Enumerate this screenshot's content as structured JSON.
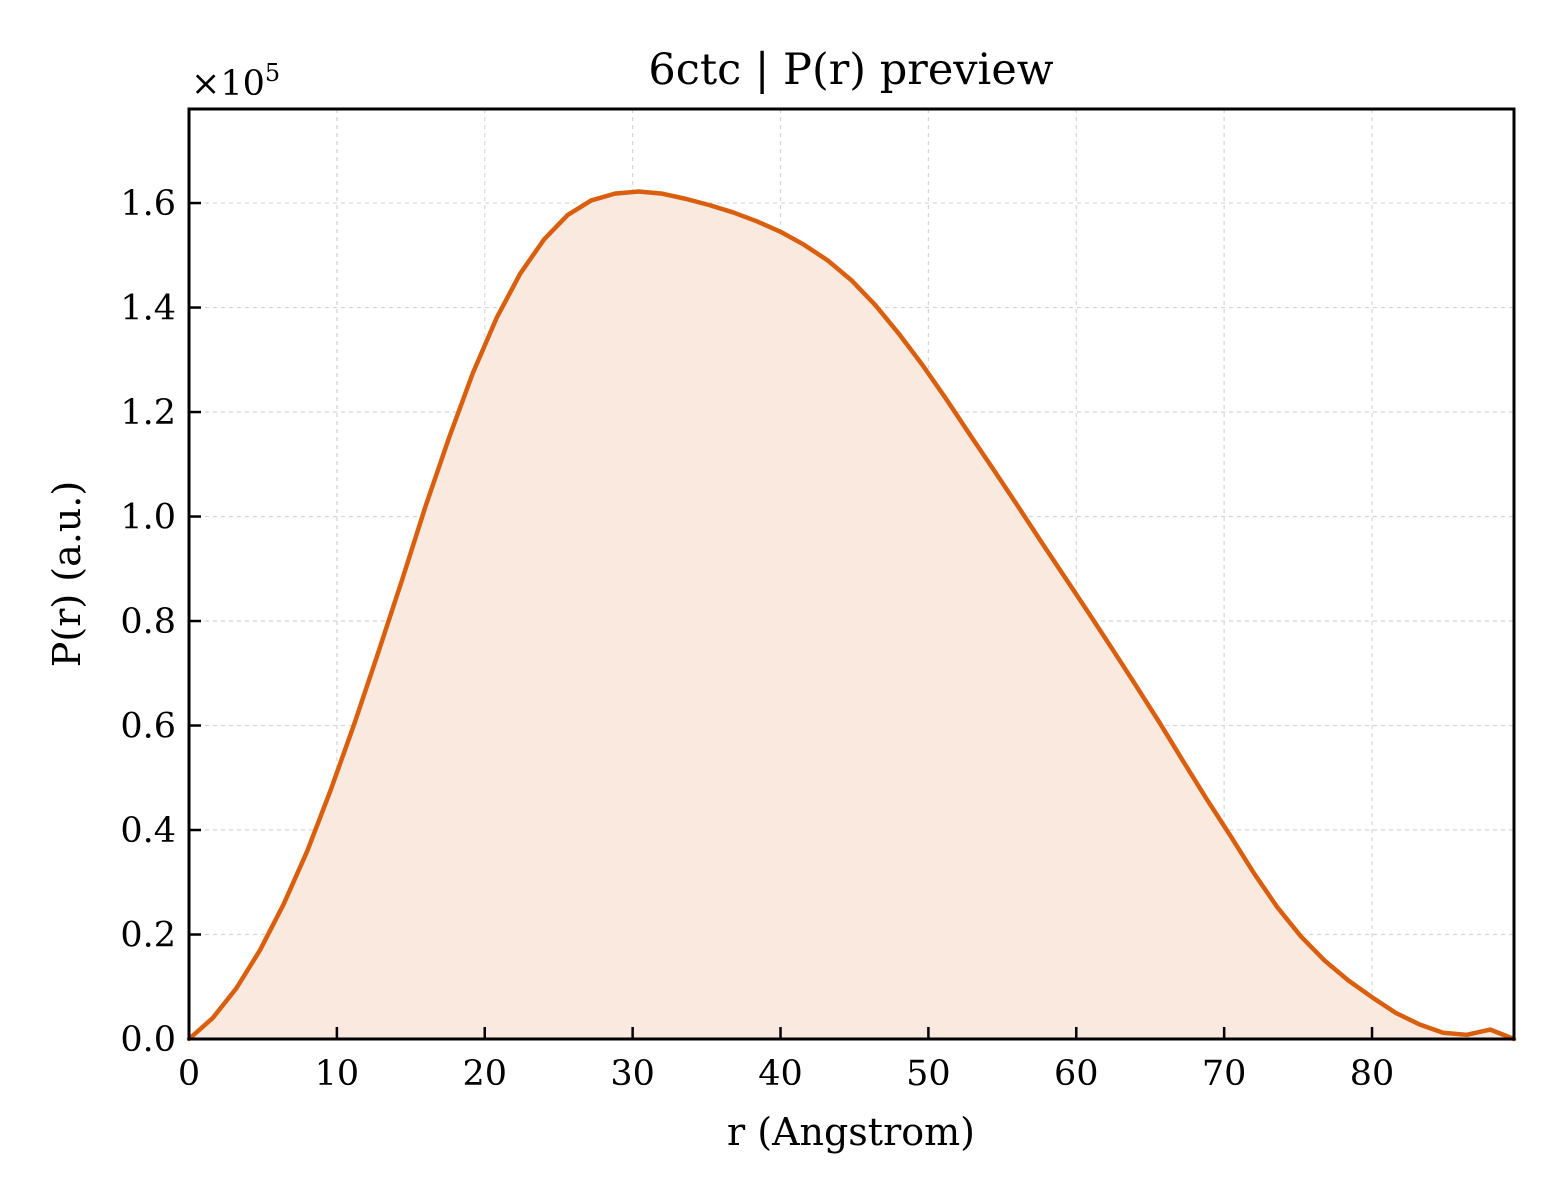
{
  "chart_data": {
    "type": "area",
    "title": "6ctc | P(r) preview",
    "xlabel": "r (Angstrom)",
    "ylabel": "P(r) (a.u.)",
    "y_multiplier": {
      "base": "×10",
      "exponent": "5"
    },
    "xlim": [
      0,
      89.6
    ],
    "ylim": [
      0,
      1.78
    ],
    "x_ticks": [
      0,
      10,
      20,
      30,
      40,
      50,
      60,
      70,
      80
    ],
    "x_tick_labels": [
      "0",
      "10",
      "20",
      "30",
      "40",
      "50",
      "60",
      "70",
      "80"
    ],
    "y_ticks": [
      0.0,
      0.2,
      0.4,
      0.6,
      0.8,
      1.0,
      1.2,
      1.4,
      1.6
    ],
    "y_tick_labels": [
      "0.0",
      "0.2",
      "0.4",
      "0.6",
      "0.8",
      "1.0",
      "1.2",
      "1.4",
      "1.6"
    ],
    "grid": true,
    "colors": {
      "line": "#d95f0e",
      "fill": "#f9e9df",
      "grid": "#d5d5d5",
      "axes": "#000000"
    },
    "series": [
      {
        "x": [
          0,
          1.6,
          3.2,
          4.8,
          6.4,
          8.0,
          9.6,
          11.2,
          12.8,
          14.4,
          16.0,
          17.6,
          19.2,
          20.8,
          22.4,
          24.0,
          25.6,
          27.2,
          28.8,
          30.4,
          32.0,
          33.6,
          35.2,
          36.8,
          38.4,
          40.0,
          41.6,
          43.2,
          44.8,
          46.4,
          48.0,
          49.6,
          51.2,
          52.8,
          54.4,
          56.0,
          57.6,
          59.2,
          60.8,
          62.4,
          64.0,
          65.6,
          67.2,
          68.8,
          70.4,
          72.0,
          73.6,
          75.2,
          76.8,
          78.4,
          80.0,
          81.6,
          83.2,
          84.8,
          86.4,
          88.0,
          89.6
        ],
        "y": [
          0.0,
          0.04,
          0.097,
          0.17,
          0.258,
          0.36,
          0.478,
          0.605,
          0.74,
          0.878,
          1.02,
          1.152,
          1.275,
          1.38,
          1.465,
          1.53,
          1.577,
          1.605,
          1.618,
          1.622,
          1.618,
          1.608,
          1.596,
          1.582,
          1.565,
          1.545,
          1.52,
          1.49,
          1.452,
          1.405,
          1.35,
          1.29,
          1.225,
          1.157,
          1.09,
          1.022,
          0.953,
          0.885,
          0.817,
          0.748,
          0.678,
          0.607,
          0.533,
          0.46,
          0.39,
          0.318,
          0.252,
          0.196,
          0.15,
          0.112,
          0.08,
          0.05,
          0.028,
          0.012,
          0.008,
          0.018,
          0.0
        ]
      }
    ]
  }
}
